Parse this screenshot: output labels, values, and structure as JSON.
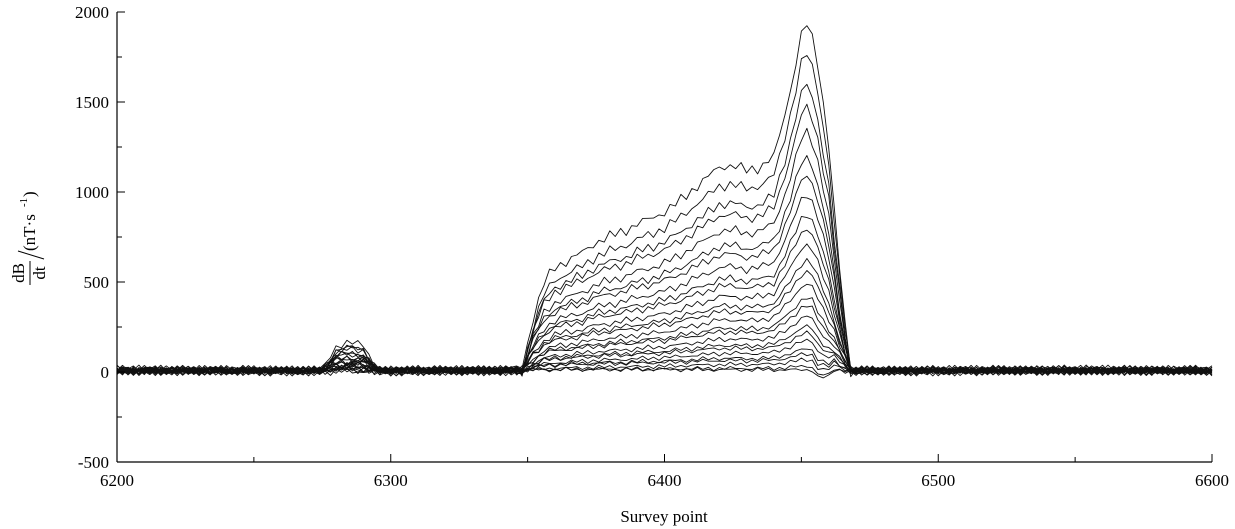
{
  "chart_data": {
    "type": "line",
    "title": "",
    "xlabel": "Survey point",
    "ylabel": {
      "numerator": "dB",
      "denominator": "dt",
      "unit": "(nT·s",
      "unit_exponent": "-1",
      "unit_close": ")"
    },
    "xlim": [
      6200,
      6600
    ],
    "ylim": [
      -500,
      2000
    ],
    "x_ticks": [
      6200,
      6300,
      6400,
      6500,
      6600
    ],
    "x_tick_labels": [
      "6200",
      "6300",
      "6400",
      "6500",
      "6600"
    ],
    "y_ticks": [
      -500,
      0,
      500,
      1000,
      1500,
      2000
    ],
    "y_tick_labels": [
      "-500",
      "0",
      "500",
      "1000",
      "1500",
      "2000"
    ],
    "grid": false,
    "legend": "none",
    "line_color": "#111111",
    "x_step": 2,
    "envelope": {
      "x": [
        6200,
        6275,
        6280,
        6285,
        6290,
        6295,
        6340,
        6348,
        6352,
        6356,
        6360,
        6365,
        6370,
        6375,
        6380,
        6385,
        6390,
        6395,
        6400,
        6405,
        6410,
        6415,
        6420,
        6425,
        6430,
        6435,
        6440,
        6443,
        6446,
        6449,
        6451,
        6453,
        6456,
        6460,
        6463,
        6466,
        6468,
        6600
      ],
      "peak": [
        0,
        0,
        130,
        150,
        140,
        0,
        0,
        0,
        280,
        470,
        560,
        600,
        640,
        700,
        730,
        760,
        800,
        830,
        870,
        920,
        990,
        1050,
        1120,
        1130,
        1100,
        1120,
        1180,
        1350,
        1550,
        1780,
        1930,
        1900,
        1700,
        1250,
        700,
        250,
        0,
        0
      ]
    },
    "series": [
      {
        "factor": 1.0
      },
      {
        "factor": 0.915
      },
      {
        "factor": 0.835
      },
      {
        "factor": 0.76
      },
      {
        "factor": 0.69
      },
      {
        "factor": 0.625
      },
      {
        "factor": 0.565
      },
      {
        "factor": 0.51
      },
      {
        "factor": 0.46
      },
      {
        "factor": 0.41
      },
      {
        "factor": 0.365
      },
      {
        "factor": 0.325
      },
      {
        "factor": 0.285
      },
      {
        "factor": 0.25
      },
      {
        "factor": 0.215
      },
      {
        "factor": 0.185
      },
      {
        "factor": 0.155
      },
      {
        "factor": 0.13
      },
      {
        "factor": 0.105
      },
      {
        "factor": 0.085
      },
      {
        "factor": 0.065
      },
      {
        "factor": 0.045
      },
      {
        "factor": 0.03
      },
      {
        "factor": 0.015
      },
      {
        "factor": 0.0
      }
    ]
  }
}
